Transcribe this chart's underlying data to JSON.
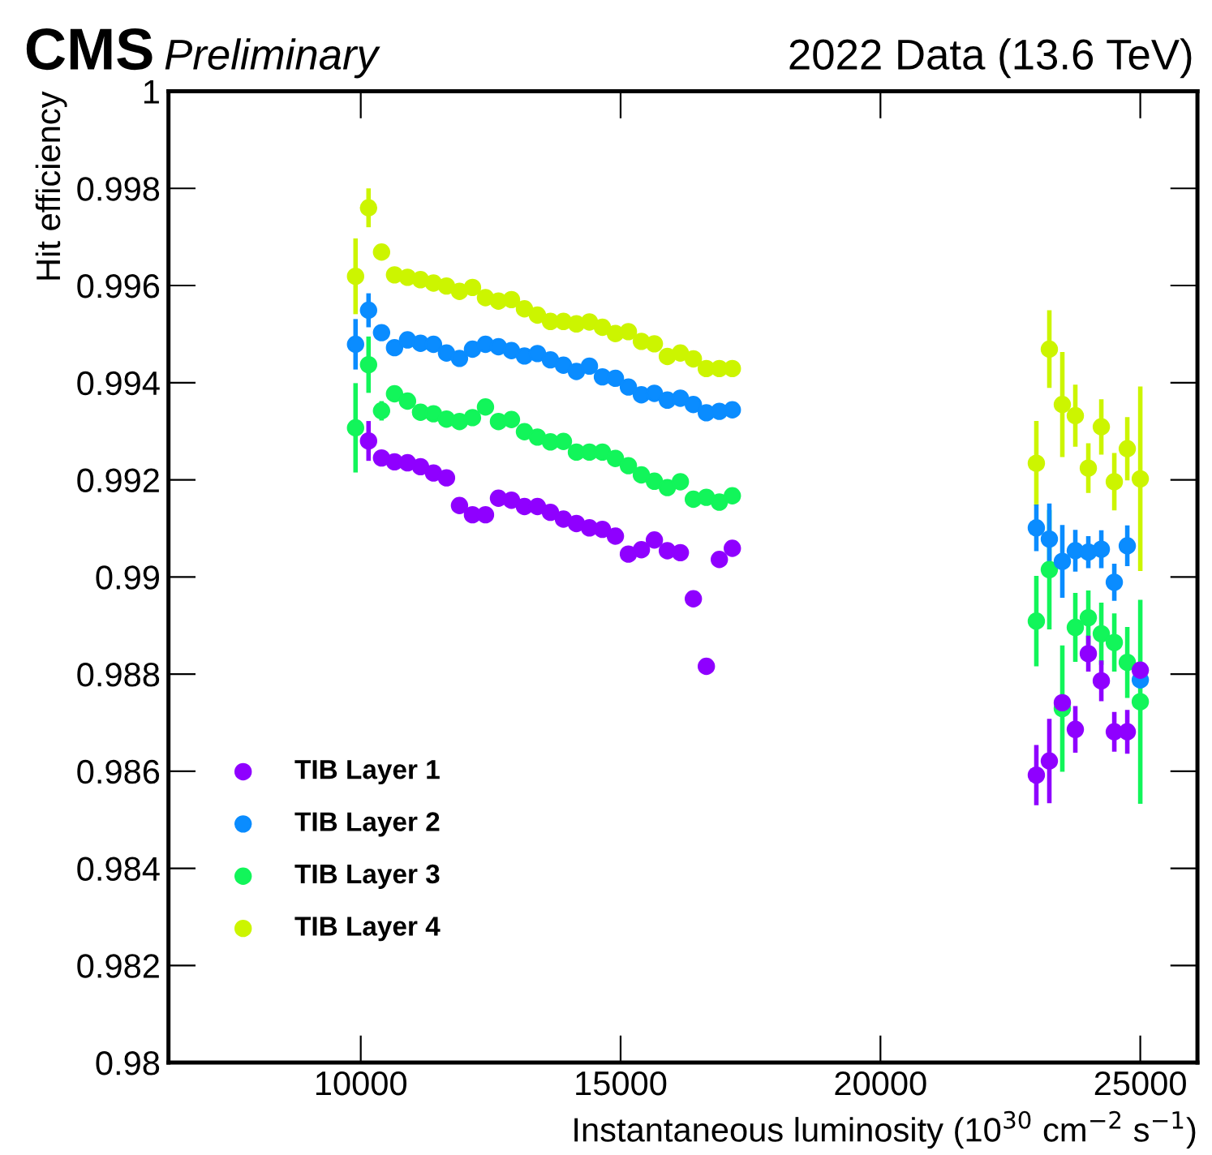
{
  "chart_data": {
    "type": "scatter",
    "title": "CMS",
    "subtitle": "Preliminary",
    "annotations": [
      "2022 Data (13.6 TeV)"
    ],
    "xlabel": "Instantaneous luminosity (10$^{30}$ cm$^{−2}$ s$^{−1}$)",
    "ylabel": "Hit efficiency",
    "xlim": [
      6300,
      26100
    ],
    "xticks": [
      10000,
      15000,
      20000,
      25000
    ],
    "ylim": [
      0.98,
      1
    ],
    "yticks": [
      0.98,
      0.982,
      0.984,
      0.986,
      0.988,
      0.99,
      0.992,
      0.994,
      0.996,
      0.998,
      1
    ],
    "grid": false,
    "legend": "bottom left",
    "marker": "circle",
    "x": [
      9900,
      10150,
      10400,
      10650,
      10900,
      11150,
      11400,
      11650,
      11900,
      12150,
      12400,
      12650,
      12900,
      13150,
      13400,
      13650,
      13900,
      14150,
      14400,
      14650,
      14900,
      15150,
      15400,
      15650,
      15900,
      16150,
      16400,
      16650,
      16900,
      17150,
      23000,
      23250,
      23500,
      23750,
      24000,
      24250,
      24500,
      24750,
      25000
    ],
    "series": [
      {
        "name": "TIB Layer 1",
        "color": "#8f00ff",
        "values": [
          null,
          0.9928,
          0.99245,
          0.99237,
          0.99235,
          0.99227,
          0.99214,
          0.99204,
          0.99147,
          0.99128,
          0.99128,
          0.99162,
          0.99158,
          0.99145,
          0.99145,
          0.99133,
          0.99119,
          0.9911,
          0.99101,
          0.99098,
          0.99084,
          0.99047,
          0.99056,
          0.99076,
          0.99054,
          0.9905,
          0.98955,
          0.98816,
          0.99036,
          0.99059,
          0.98592,
          0.98621,
          0.98741,
          0.98686,
          0.98842,
          0.98786,
          0.98681,
          0.98681,
          0.98808
        ],
        "errors": [
          null,
          0.00041,
          null,
          null,
          null,
          null,
          null,
          null,
          null,
          null,
          null,
          null,
          null,
          null,
          null,
          null,
          null,
          null,
          null,
          null,
          null,
          null,
          null,
          null,
          null,
          null,
          null,
          null,
          null,
          null,
          0.00062,
          0.00087,
          null,
          0.00048,
          0.00037,
          0.00042,
          0.00041,
          0.00045,
          null
        ]
      },
      {
        "name": "TIB Layer 2",
        "color": "#0a8cff",
        "values": [
          0.99479,
          0.99549,
          0.99503,
          0.99472,
          0.99488,
          0.99481,
          0.99479,
          0.99461,
          0.9945,
          0.99469,
          0.99479,
          0.99474,
          0.99466,
          0.99455,
          0.9946,
          0.99447,
          0.99436,
          0.99423,
          0.99434,
          0.99412,
          0.99409,
          0.99391,
          0.99375,
          0.99378,
          0.99364,
          0.99368,
          0.99355,
          0.99338,
          0.99341,
          0.99344,
          0.99101,
          0.99078,
          0.99032,
          0.99054,
          0.99051,
          0.99057,
          0.98989,
          0.99064,
          0.98788
        ],
        "errors": [
          0.00052,
          0.00035,
          null,
          null,
          null,
          null,
          null,
          null,
          null,
          null,
          null,
          null,
          null,
          null,
          null,
          null,
          null,
          null,
          null,
          null,
          null,
          null,
          null,
          null,
          null,
          null,
          null,
          null,
          null,
          null,
          0.00048,
          0.00073,
          0.00075,
          0.00043,
          0.00033,
          0.00039,
          0.00038,
          0.00042,
          null
        ]
      },
      {
        "name": "TIB Layer 3",
        "color": "#12f55a",
        "values": [
          0.99307,
          0.99437,
          0.99342,
          0.99377,
          0.99362,
          0.99339,
          0.99336,
          0.99325,
          0.9932,
          0.99328,
          0.9935,
          0.9932,
          0.99324,
          0.99299,
          0.99288,
          0.99278,
          0.99279,
          0.99257,
          0.99257,
          0.99257,
          0.99244,
          0.99229,
          0.9921,
          0.99197,
          0.99184,
          0.99196,
          0.9916,
          0.99164,
          0.99154,
          0.99167,
          0.98909,
          0.99015,
          0.98729,
          0.98896,
          0.98916,
          0.98883,
          0.98865,
          0.98824,
          0.98743
        ],
        "errors": [
          0.00092,
          0.00058,
          0.0002,
          null,
          null,
          null,
          null,
          null,
          null,
          null,
          null,
          null,
          null,
          null,
          null,
          null,
          null,
          null,
          null,
          null,
          null,
          null,
          null,
          null,
          null,
          null,
          null,
          null,
          null,
          null,
          0.00093,
          0.00123,
          0.0013,
          0.00071,
          0.00056,
          0.00064,
          0.0006,
          0.00073,
          0.0021
        ]
      },
      {
        "name": "TIB Layer 4",
        "color": "#ccf500",
        "values": [
          0.99619,
          0.9976,
          0.99669,
          0.99622,
          0.99617,
          0.99612,
          0.99605,
          0.99599,
          0.99588,
          0.99596,
          0.99575,
          0.99568,
          0.99571,
          0.99552,
          0.99539,
          0.99526,
          0.99526,
          0.99521,
          0.99525,
          0.99514,
          0.99501,
          0.99505,
          0.99485,
          0.9948,
          0.99454,
          0.99461,
          0.99449,
          0.99429,
          0.99429,
          0.99429,
          0.99234,
          0.99469,
          0.99355,
          0.99332,
          0.99224,
          0.99309,
          0.99196,
          0.99264,
          0.99202
        ],
        "errors": [
          0.00078,
          0.0004,
          null,
          null,
          null,
          null,
          null,
          null,
          null,
          null,
          null,
          null,
          null,
          null,
          null,
          null,
          null,
          null,
          null,
          null,
          null,
          null,
          null,
          null,
          null,
          null,
          null,
          null,
          null,
          null,
          0.00087,
          0.0008,
          0.00108,
          0.00064,
          0.00051,
          0.00057,
          0.00059,
          0.00065,
          0.0019
        ]
      }
    ]
  }
}
